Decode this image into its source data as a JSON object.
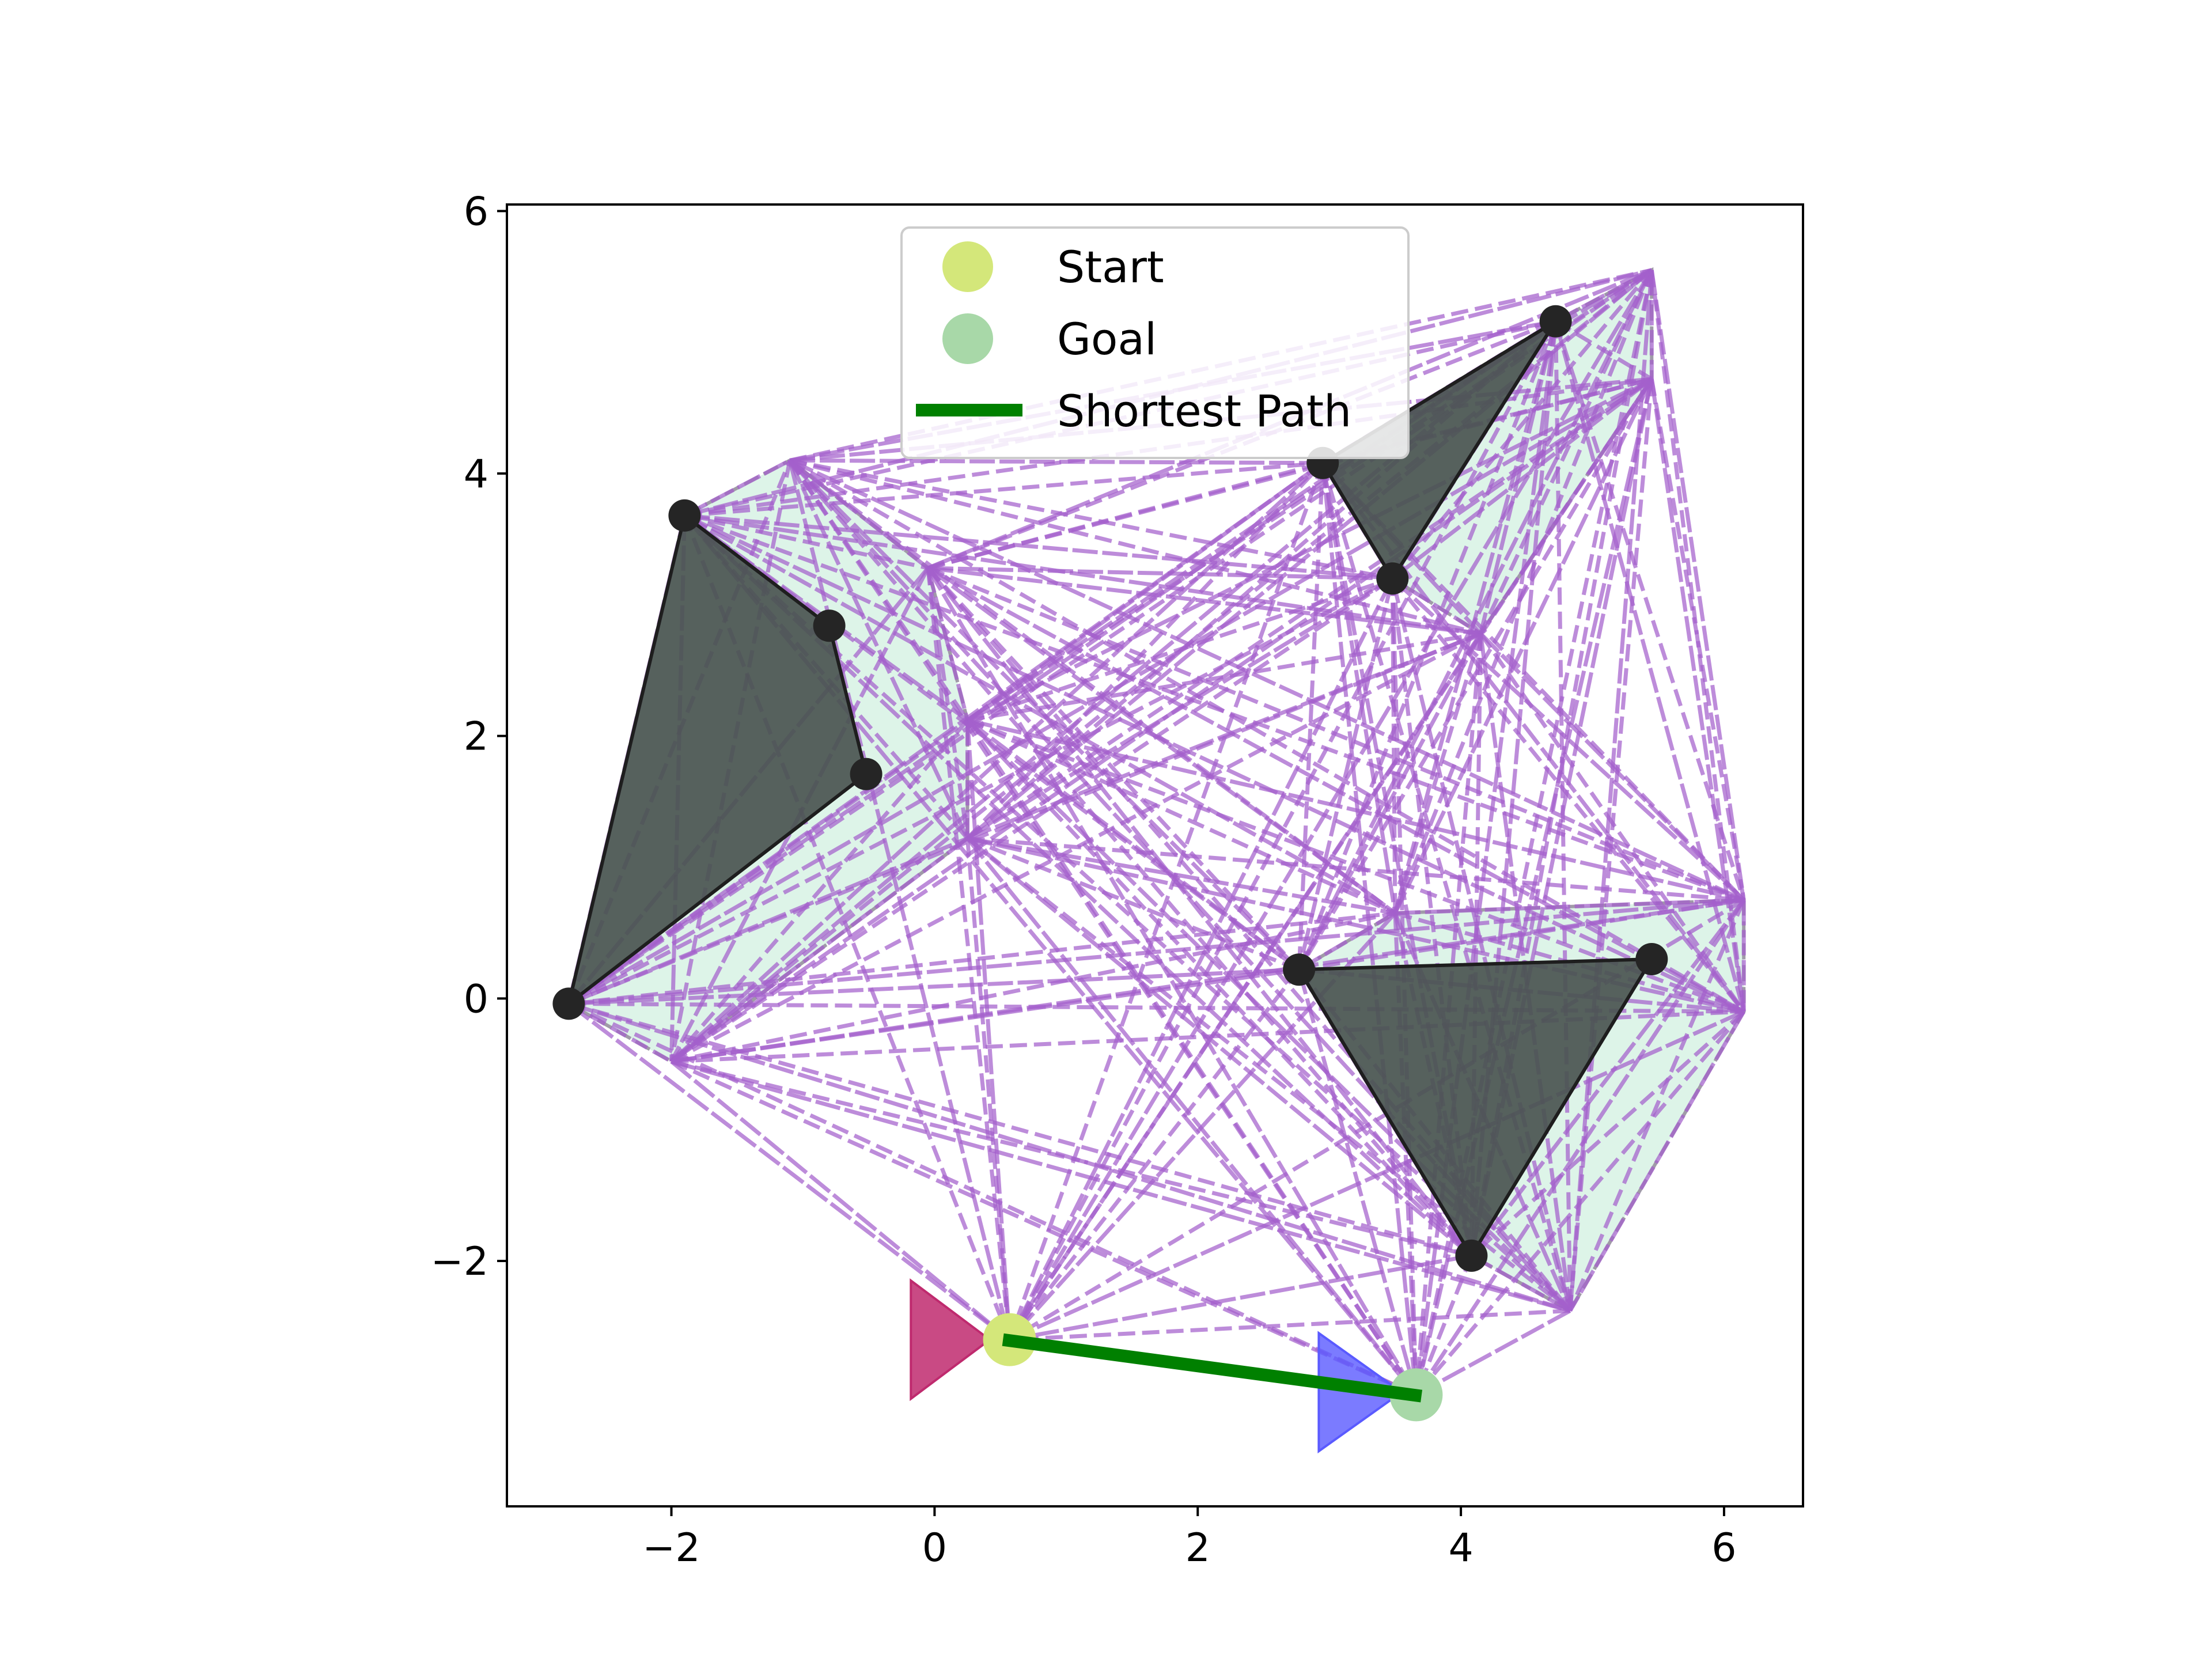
{
  "chart_data": {
    "type": "scatter",
    "title": "",
    "xlabel": "",
    "ylabel": "",
    "xlim": [
      -3.25,
      6.6
    ],
    "ylim": [
      -3.87,
      6.05
    ],
    "grid": false,
    "xticks": [
      -2,
      0,
      2,
      4,
      6
    ],
    "yticks": [
      -2,
      0,
      2,
      4,
      6
    ],
    "xtick_labels": [
      "−2",
      "0",
      "2",
      "4",
      "6"
    ],
    "ytick_labels": [
      "−2",
      "0",
      "2",
      "4",
      "6"
    ],
    "legend": {
      "placement": "upper center",
      "entries": [
        {
          "label": "Start",
          "marker": "circle",
          "color": "#d4e77a"
        },
        {
          "label": "Goal",
          "marker": "circle",
          "color": "#a8d8a8"
        },
        {
          "label": "Shortest Path",
          "marker": "line",
          "color": "#008000"
        }
      ]
    },
    "colors": {
      "obstacle": "#4a5450",
      "obstacle_edge": "#1e1e1e",
      "inflated_region": "#ddf4e8",
      "inflated_edge": "#a09aa8",
      "visibility_edge": "#a460cc",
      "vertex": "#252525",
      "start": "#d4e77a",
      "goal": "#a8d8a8",
      "path": "#008000",
      "start_triangle": "#bf2a6e",
      "goal_triangle": "#5a5aff"
    },
    "obstacles": [
      {
        "name": "obstacle-left",
        "vertices": [
          [
            -1.9,
            3.68
          ],
          [
            -0.8,
            2.84
          ],
          [
            -0.52,
            1.71
          ],
          [
            -2.78,
            -0.04
          ]
        ]
      },
      {
        "name": "obstacle-top-right",
        "vertices": [
          [
            4.72,
            5.16
          ],
          [
            2.95,
            4.08
          ],
          [
            3.48,
            3.2
          ]
        ]
      },
      {
        "name": "obstacle-bottom-right",
        "vertices": [
          [
            2.77,
            0.22
          ],
          [
            5.45,
            0.3
          ],
          [
            4.08,
            -1.96
          ]
        ]
      }
    ],
    "inflated_regions": [
      {
        "name": "inflated-left",
        "vertices": [
          [
            -2.78,
            -0.04
          ],
          [
            -1.9,
            3.68
          ],
          [
            -1.1,
            4.1
          ],
          [
            -0.05,
            3.28
          ],
          [
            0.25,
            2.12
          ],
          [
            0.25,
            1.22
          ],
          [
            -2.0,
            -0.48
          ]
        ]
      },
      {
        "name": "inflated-top-right",
        "vertices": [
          [
            2.95,
            4.08
          ],
          [
            4.72,
            5.16
          ],
          [
            5.45,
            5.55
          ],
          [
            5.45,
            4.72
          ],
          [
            4.15,
            2.78
          ],
          [
            3.48,
            3.2
          ]
        ]
      },
      {
        "name": "inflated-bottom-right",
        "vertices": [
          [
            2.77,
            0.22
          ],
          [
            3.5,
            0.65
          ],
          [
            6.15,
            0.75
          ],
          [
            6.15,
            -0.1
          ],
          [
            4.83,
            -2.38
          ],
          [
            4.08,
            -1.96
          ]
        ]
      }
    ],
    "visibility_nodes": [
      [
        -2.78,
        -0.04
      ],
      [
        -1.9,
        3.68
      ],
      [
        -1.1,
        4.1
      ],
      [
        -0.05,
        3.28
      ],
      [
        0.25,
        2.12
      ],
      [
        0.25,
        1.22
      ],
      [
        -2.0,
        -0.48
      ],
      [
        2.95,
        4.08
      ],
      [
        3.48,
        3.2
      ],
      [
        4.72,
        5.16
      ],
      [
        5.45,
        5.55
      ],
      [
        5.45,
        4.72
      ],
      [
        4.15,
        2.78
      ],
      [
        2.77,
        0.22
      ],
      [
        3.5,
        0.65
      ],
      [
        6.15,
        0.75
      ],
      [
        6.15,
        -0.1
      ],
      [
        4.83,
        -2.38
      ],
      [
        4.08,
        -1.96
      ],
      [
        0.57,
        -2.6
      ],
      [
        3.66,
        -3.02
      ]
    ],
    "start": {
      "label": "Start",
      "x": 0.57,
      "y": -2.6
    },
    "goal": {
      "label": "Goal",
      "x": 3.66,
      "y": -3.02
    },
    "shortest_path": {
      "label": "Shortest Path",
      "points": [
        [
          0.52,
          -2.6
        ],
        [
          3.7,
          -3.03
        ]
      ]
    },
    "start_triangle": {
      "vertices": [
        [
          -0.18,
          -2.15
        ],
        [
          -0.18,
          -3.05
        ],
        [
          0.42,
          -2.6
        ]
      ]
    },
    "goal_triangle": {
      "vertices": [
        [
          2.92,
          -2.55
        ],
        [
          2.92,
          -3.45
        ],
        [
          3.55,
          -3.0
        ]
      ]
    }
  }
}
